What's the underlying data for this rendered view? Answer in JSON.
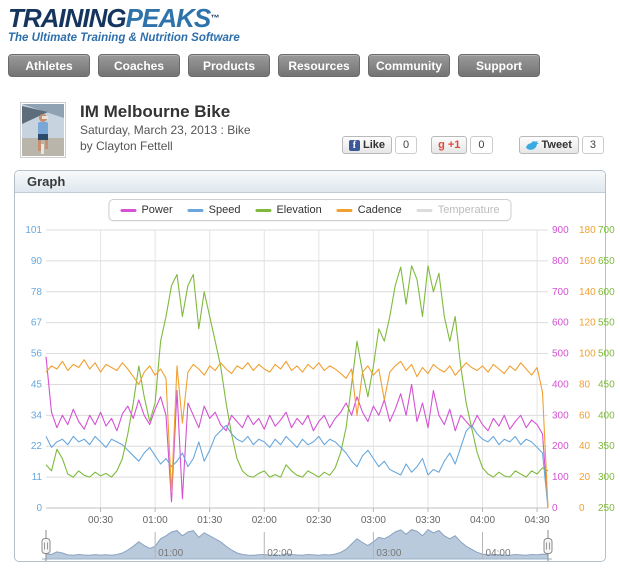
{
  "logo": {
    "brand_training": "TRAINING",
    "brand_peaks": "PEAKS",
    "tm": "™",
    "tagline": "The Ultimate Training & Nutrition Software"
  },
  "nav": {
    "items": [
      "Athletes",
      "Coaches",
      "Products",
      "Resources",
      "Community",
      "Support"
    ]
  },
  "workout": {
    "title": "IM Melbourne Bike",
    "date_line": "Saturday, March 23, 2013 : Bike",
    "byline": "by Clayton Fettell"
  },
  "social": {
    "like_label": "Like",
    "like_count": "0",
    "gplus_g": "g",
    "gplus_label": "+1",
    "gplus_count": "0",
    "tweet_label": "Tweet",
    "tweet_count": "3"
  },
  "panel": {
    "title": "Graph"
  },
  "chart_data": {
    "type": "line",
    "title": "",
    "grid": true,
    "legend_position": "top-center",
    "step_minutes": 3,
    "x_axis": {
      "max_minutes": 276,
      "tick_minutes": [
        30,
        60,
        90,
        120,
        150,
        180,
        210,
        240,
        270
      ],
      "tick_labels": [
        "00:30",
        "01:00",
        "01:30",
        "02:00",
        "02:30",
        "03:00",
        "03:30",
        "04:00",
        "04:30"
      ]
    },
    "axes": {
      "speed": {
        "side": "left",
        "color": "#69a8dd",
        "min": 0,
        "max": 101,
        "labels": [
          "0",
          "11",
          "22",
          "34",
          "45",
          "56",
          "67",
          "78",
          "90",
          "101"
        ]
      },
      "power": {
        "side": "right",
        "col": 0,
        "color": "#d452d4",
        "min": 0,
        "max": 900,
        "labels": [
          "0",
          "100",
          "200",
          "300",
          "400",
          "500",
          "600",
          "700",
          "800",
          "900"
        ]
      },
      "cadence": {
        "side": "right",
        "col": 1,
        "color": "#f0a030",
        "min": 0,
        "max": 180,
        "labels": [
          "0",
          "20",
          "40",
          "60",
          "80",
          "100",
          "120",
          "140",
          "160",
          "180"
        ]
      },
      "elevation": {
        "side": "right",
        "col": 2,
        "color": "#7fba3d",
        "min": 250,
        "max": 700,
        "labels": [
          "250",
          "300",
          "350",
          "400",
          "450",
          "500",
          "550",
          "600",
          "650",
          "700"
        ]
      }
    },
    "series": [
      {
        "name": "Power",
        "axis": "power",
        "color": "#d452d4",
        "enabled": true,
        "values": [
          490,
          310,
          260,
          300,
          270,
          320,
          280,
          255,
          300,
          270,
          310,
          265,
          290,
          250,
          305,
          330,
          290,
          350,
          300,
          270,
          320,
          360,
          300,
          20,
          380,
          30,
          340,
          300,
          260,
          330,
          290,
          310,
          270,
          250,
          300,
          280,
          260,
          300,
          270,
          290,
          255,
          300,
          265,
          285,
          310,
          260,
          290,
          270,
          300,
          250,
          280,
          300,
          260,
          290,
          310,
          340,
          300,
          360,
          310,
          280,
          330,
          300,
          350,
          280,
          320,
          370,
          300,
          400,
          280,
          340,
          260,
          380,
          300,
          270,
          320,
          250,
          300,
          280,
          260,
          300,
          270,
          250,
          290,
          265,
          300,
          255,
          280,
          300,
          260,
          285,
          270,
          240,
          0
        ]
      },
      {
        "name": "Speed",
        "axis": "speed",
        "color": "#69a8dd",
        "enabled": true,
        "values": [
          26,
          22,
          24,
          25,
          23,
          26,
          24,
          25,
          23,
          26,
          24,
          22,
          25,
          24,
          23,
          21,
          19,
          17,
          20,
          22,
          19,
          16,
          18,
          15,
          17,
          20,
          15,
          18,
          24,
          17,
          21,
          26,
          28,
          30,
          27,
          25,
          24,
          26,
          23,
          25,
          24,
          22,
          25,
          23,
          26,
          24,
          22,
          25,
          23,
          24,
          26,
          23,
          25,
          24,
          22,
          20,
          17,
          15,
          19,
          21,
          18,
          15,
          17,
          14,
          13,
          12,
          16,
          13,
          15,
          18,
          12,
          14,
          13,
          17,
          20,
          16,
          22,
          28,
          30,
          27,
          25,
          24,
          26,
          23,
          25,
          24,
          26,
          23,
          25,
          24,
          22,
          20,
          0
        ]
      },
      {
        "name": "Elevation",
        "axis": "elevation",
        "color": "#7fba3d",
        "enabled": true,
        "values": [
          320,
          310,
          345,
          330,
          305,
          300,
          310,
          303,
          300,
          308,
          302,
          306,
          300,
          310,
          330,
          370,
          420,
          480,
          430,
          390,
          420,
          520,
          560,
          610,
          628,
          560,
          610,
          628,
          540,
          600,
          560,
          520,
          480,
          420,
          370,
          330,
          310,
          302,
          300,
          306,
          310,
          300,
          304,
          300,
          320,
          310,
          303,
          300,
          310,
          305,
          300,
          308,
          303,
          315,
          340,
          380,
          450,
          520,
          470,
          430,
          480,
          540,
          520,
          560,
          610,
          640,
          580,
          642,
          620,
          560,
          642,
          600,
          630,
          560,
          520,
          560,
          480,
          420,
          380,
          340,
          315,
          305,
          300,
          308,
          302,
          300,
          310,
          305,
          300,
          310,
          305,
          315,
          310
        ]
      },
      {
        "name": "Cadence",
        "axis": "cadence",
        "color": "#f0a030",
        "enabled": true,
        "values": [
          88,
          92,
          90,
          95,
          89,
          93,
          91,
          96,
          90,
          94,
          88,
          93,
          91,
          89,
          94,
          90,
          85,
          80,
          88,
          92,
          86,
          90,
          84,
          10,
          92,
          55,
          88,
          93,
          90,
          86,
          92,
          89,
          94,
          90,
          87,
          92,
          90,
          94,
          89,
          93,
          90,
          88,
          93,
          90,
          95,
          89,
          92,
          88,
          93,
          90,
          94,
          89,
          92,
          90,
          87,
          84,
          90,
          60,
          88,
          92,
          86,
          90,
          70,
          88,
          92,
          95,
          89,
          93,
          85,
          91,
          87,
          93,
          90,
          88,
          92,
          86,
          90,
          94,
          91,
          89,
          92,
          88,
          93,
          90,
          87,
          92,
          89,
          94,
          90,
          86,
          91,
          75,
          0
        ]
      },
      {
        "name": "Temperature",
        "axis": "speed",
        "color": "#c9c9c9",
        "enabled": false,
        "values": []
      }
    ],
    "navigator": {
      "series": "Elevation",
      "fill": "#b3c4d9",
      "line": "#8aa2c0",
      "tick_minutes": [
        60,
        120,
        180,
        240
      ],
      "tick_labels": [
        "01:00",
        "02:00",
        "03:00",
        "04:00"
      ]
    }
  }
}
